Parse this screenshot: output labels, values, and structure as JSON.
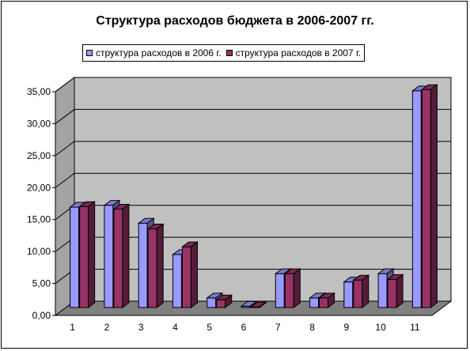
{
  "chart_data": {
    "type": "bar",
    "title": "Структура расходов бюджета в 2006-2007 гг.",
    "xlabel": "",
    "ylabel": "",
    "categories": [
      "1",
      "2",
      "3",
      "4",
      "5",
      "6",
      "7",
      "8",
      "9",
      "10",
      "11"
    ],
    "series": [
      {
        "name": "структура расходов в 2006 г.",
        "color": "#9999ff",
        "values": [
          15.7,
          16.0,
          13.2,
          8.3,
          1.5,
          0.2,
          5.3,
          1.5,
          4.0,
          5.3,
          33.9
        ]
      },
      {
        "name": "структура расходов в 2007 г.",
        "color": "#993366",
        "values": [
          15.8,
          15.4,
          12.3,
          9.5,
          1.2,
          0.1,
          5.3,
          1.5,
          4.3,
          4.4,
          34.1
        ]
      }
    ],
    "ylim": [
      0,
      35
    ],
    "yticks": [
      "0,00",
      "5,00",
      "10,00",
      "15,00",
      "20,00",
      "25,00",
      "30,00",
      "35,00"
    ],
    "grid": true,
    "legend_position": "top",
    "wall_color": "#c0c0c0",
    "floor_color": "#808080"
  }
}
